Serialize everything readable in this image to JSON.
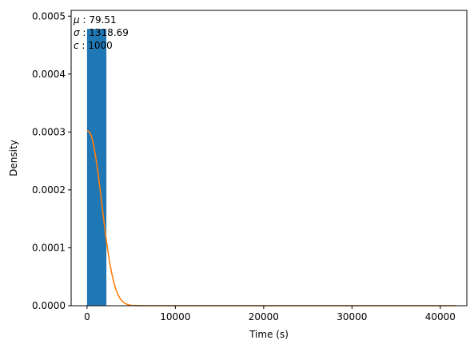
{
  "chart_data": {
    "type": "bar",
    "xlabel": "Time (s)",
    "ylabel": "Density",
    "xlim": [
      -1800,
      43000
    ],
    "ylim": [
      0,
      0.00051
    ],
    "xticks": [
      0,
      10000,
      20000,
      30000,
      40000
    ],
    "xtick_labels": [
      "0",
      "10000",
      "20000",
      "30000",
      "40000"
    ],
    "yticks": [
      0,
      0.0001,
      0.0002,
      0.0003,
      0.0004,
      0.0005
    ],
    "ytick_labels": [
      "0.0000",
      "0.0001",
      "0.0002",
      "0.0003",
      "0.0004",
      "0.0005"
    ],
    "bars": [
      {
        "x0": 0,
        "x1": 2190,
        "value": 0.000478
      }
    ],
    "curve": {
      "x": [
        0,
        250,
        500,
        750,
        1000,
        1250,
        1500,
        1750,
        2000,
        2250,
        2500,
        2750,
        3000,
        3250,
        3500,
        3750,
        4000,
        4250,
        4500,
        4750,
        5000,
        6000,
        8000,
        12000,
        20000,
        30000,
        41800
      ],
      "y": [
        0.000302,
        0.000301,
        0.000293,
        0.000277,
        0.000255,
        0.000229,
        0.000198,
        0.000166,
        0.000135,
        0.000106,
        8.05e-05,
        5.9e-05,
        4.2e-05,
        2.88e-05,
        1.91e-05,
        1.22e-05,
        7.6e-06,
        4.5e-06,
        2.6e-06,
        1.4e-06,
        7e-07,
        1e-07,
        0,
        0,
        0,
        0,
        0
      ]
    },
    "series_colors": {
      "bars": "#1f77b4",
      "curve": "#ff7f0e"
    },
    "annotations": [
      {
        "symbol": "μ",
        "value": "79.51"
      },
      {
        "symbol": "σ",
        "value": "1318.69"
      },
      {
        "symbol": "c",
        "value": "1000"
      }
    ],
    "grid": false
  }
}
